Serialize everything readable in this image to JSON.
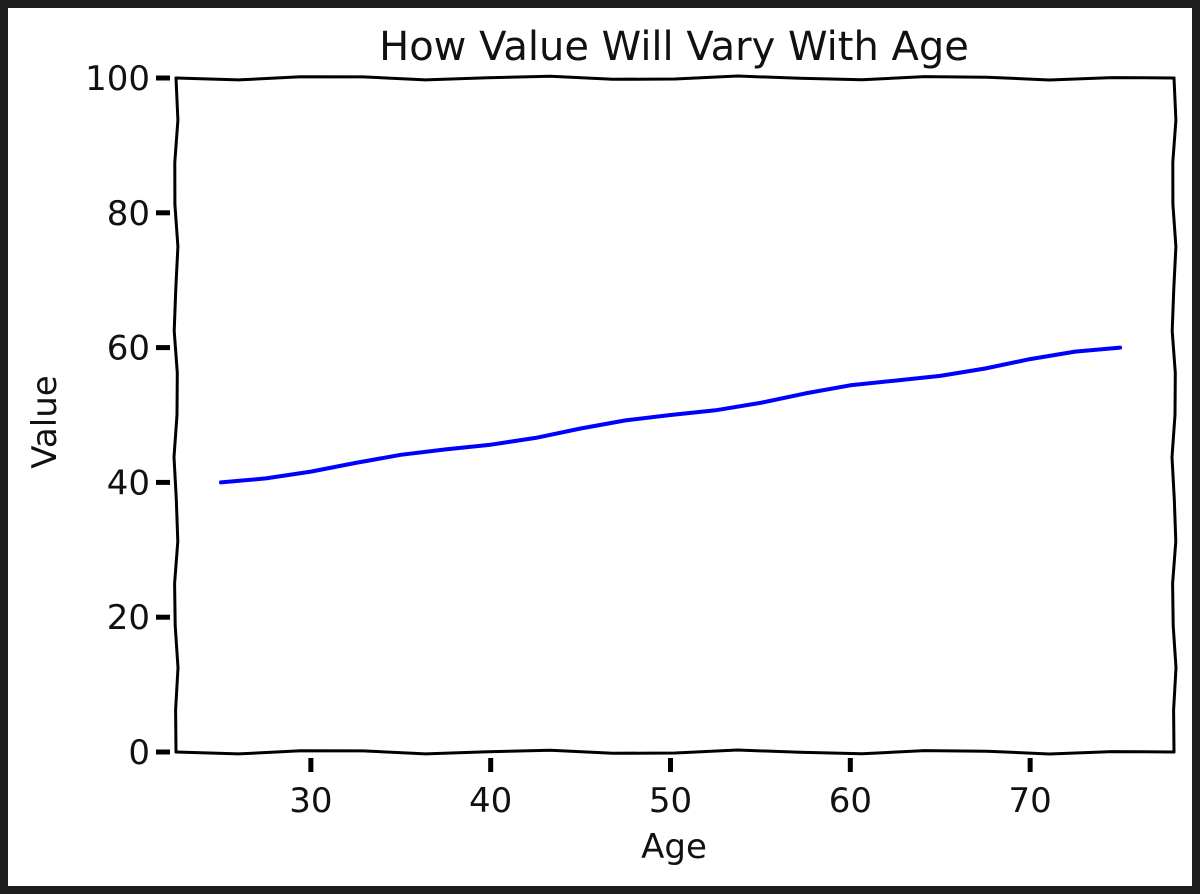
{
  "chart_data": {
    "type": "line",
    "title": "How Value Will Vary With Age",
    "xlabel": "Age",
    "ylabel": "Value",
    "xlim": [
      22.5,
      78
    ],
    "ylim": [
      0,
      100
    ],
    "xticks": [
      30,
      40,
      50,
      60,
      70
    ],
    "yticks": [
      0,
      20,
      40,
      60,
      80,
      100
    ],
    "grid": false,
    "style": "xkcd sketch",
    "series": [
      {
        "color": "#0000ff",
        "x": [
          25,
          27.5,
          30,
          32.5,
          35,
          37.5,
          40,
          42.5,
          45,
          47.5,
          50,
          52.5,
          55,
          57.5,
          60,
          62.5,
          65,
          67.5,
          70,
          72.5,
          75
        ],
        "y": [
          40,
          40.6,
          41.6,
          42.9,
          44.1,
          44.9,
          45.6,
          46.6,
          48,
          49.2,
          50,
          50.7,
          51.8,
          53.2,
          54.4,
          55.1,
          55.8,
          56.9,
          58.3,
          59.4,
          60
        ]
      }
    ]
  }
}
